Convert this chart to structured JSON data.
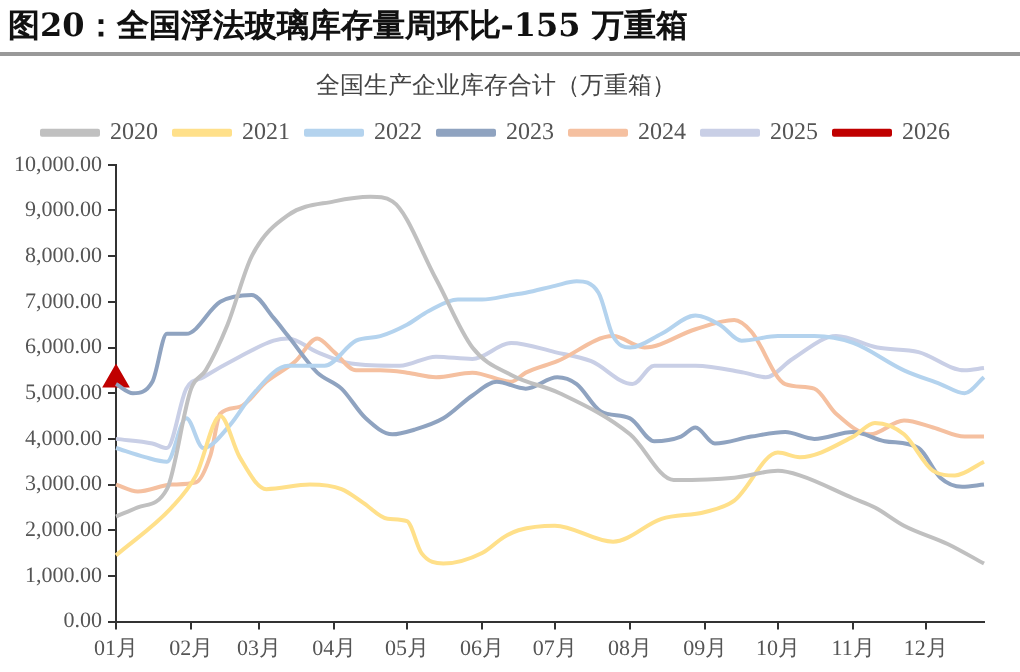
{
  "chart_data": {
    "type": "line",
    "title": "图20：全国浮法玻璃库存量周环比-155 万重箱",
    "subtitle": "全国生产企业库存合计（万重箱）",
    "legend": "top",
    "grid": false,
    "marker": "none",
    "line_style": "solid",
    "xlim": [
      "--01-01",
      "--12-25"
    ],
    "xticks": [
      {
        "value": "--01-01",
        "label": "01月"
      },
      {
        "value": "--02-01",
        "label": "02月"
      },
      {
        "value": "--03-01",
        "label": "03月"
      },
      {
        "value": "--04-01",
        "label": "04月"
      },
      {
        "value": "--05-01",
        "label": "05月"
      },
      {
        "value": "--06-01",
        "label": "06月"
      },
      {
        "value": "--07-01",
        "label": "07月"
      },
      {
        "value": "--08-01",
        "label": "08月"
      },
      {
        "value": "--09-01",
        "label": "09月"
      },
      {
        "value": "--10-01",
        "label": "10月"
      },
      {
        "value": "--11-01",
        "label": "11月"
      },
      {
        "value": "--12-01",
        "label": "12月"
      }
    ],
    "ylim": [
      0,
      10000
    ],
    "yticks": [
      {
        "value": 0,
        "label": "0.00"
      },
      {
        "value": 1000,
        "label": "1,000.00"
      },
      {
        "value": 2000,
        "label": "2,000.00"
      },
      {
        "value": 3000,
        "label": "3,000.00"
      },
      {
        "value": 4000,
        "label": "4,000.00"
      },
      {
        "value": 5000,
        "label": "5,000.00"
      },
      {
        "value": 6000,
        "label": "6,000.00"
      },
      {
        "value": 7000,
        "label": "7,000.00"
      },
      {
        "value": 8000,
        "label": "8,000.00"
      },
      {
        "value": 9000,
        "label": "9,000.00"
      },
      {
        "value": 10000,
        "label": "10,000.00"
      }
    ],
    "series": [
      {
        "name": "2020",
        "color": "#c0c0c0",
        "x": [
          "--01-01",
          "--01-10",
          "--01-22",
          "--02-01",
          "--02-07",
          "--02-16",
          "--02-26",
          "--03-13",
          "--04-01",
          "--04-16",
          "--04-25",
          "--05-13",
          "--05-28",
          "--06-13",
          "--07-03",
          "--08-01",
          "--08-19",
          "--09-13",
          "--10-01",
          "--10-10",
          "--11-01",
          "--11-10",
          "--11-22",
          "--12-10",
          "--12-25"
        ],
        "values": [
          2300,
          2500,
          2900,
          5100,
          5500,
          6500,
          8000,
          8900,
          9200,
          9300,
          9200,
          7500,
          6000,
          5400,
          5000,
          4100,
          3100,
          3150,
          3300,
          3200,
          2700,
          2500,
          2100,
          1700,
          1270
        ]
      },
      {
        "name": "2021",
        "color": "#ffe08a",
        "x": [
          "--01-01",
          "--01-24",
          "--02-03",
          "--02-13",
          "--02-21",
          "--03-04",
          "--03-22",
          "--04-04",
          "--04-13",
          "--04-23",
          "--05-01",
          "--05-07",
          "--05-16",
          "--06-01",
          "--06-10",
          "--06-16",
          "--07-01",
          "--07-25",
          "--08-14",
          "--09-01",
          "--09-13",
          "--10-01",
          "--10-10",
          "--11-01",
          "--11-10",
          "--11-22",
          "--12-04",
          "--12-13",
          "--12-25"
        ],
        "values": [
          1450,
          2500,
          3200,
          4500,
          3600,
          2900,
          3000,
          2900,
          2600,
          2250,
          2200,
          1500,
          1270,
          1500,
          1850,
          2000,
          2100,
          1750,
          2250,
          2400,
          2650,
          3700,
          3600,
          4050,
          4350,
          4100,
          3300,
          3200,
          3500
        ]
      },
      {
        "name": "2022",
        "color": "#b4d3ee",
        "x": [
          "--01-01",
          "--01-13",
          "--01-22",
          "--01-30",
          "--02-06",
          "--02-17",
          "--02-26",
          "--03-13",
          "--03-28",
          "--04-10",
          "--04-20",
          "--05-01",
          "--05-10",
          "--05-22",
          "--06-01",
          "--06-13",
          "--06-19",
          "--07-01",
          "--07-10",
          "--07-19",
          "--07-25",
          "--08-01",
          "--08-14",
          "--08-28",
          "--09-07",
          "--09-16",
          "--10-01",
          "--10-16",
          "--11-01",
          "--11-22",
          "--12-07",
          "--12-17",
          "--12-25"
        ],
        "values": [
          3800,
          3600,
          3500,
          4450,
          3800,
          4300,
          4950,
          5600,
          5600,
          6150,
          6250,
          6500,
          6800,
          7050,
          7050,
          7150,
          7200,
          7350,
          7450,
          7200,
          6250,
          6000,
          6300,
          6700,
          6500,
          6150,
          6250,
          6250,
          6100,
          5500,
          5200,
          5000,
          5350
        ]
      },
      {
        "name": "2023",
        "color": "#8fa3c0",
        "x": [
          "--01-01",
          "--01-08",
          "--01-16",
          "--01-22",
          "--01-30",
          "--02-13",
          "--02-26",
          "--03-07",
          "--03-13",
          "--03-25",
          "--04-04",
          "--04-14",
          "--04-25",
          "--05-04",
          "--05-16",
          "--05-28",
          "--06-07",
          "--06-19",
          "--07-02",
          "--07-10",
          "--07-20",
          "--08-01",
          "--08-11",
          "--08-22",
          "--08-28",
          "--09-05",
          "--09-20",
          "--10-04",
          "--10-16",
          "--11-01",
          "--11-14",
          "--11-28",
          "--12-07",
          "--12-16",
          "--12-25"
        ],
        "values": [
          5200,
          5000,
          5250,
          6300,
          6300,
          7000,
          7150,
          6650,
          6250,
          5450,
          5100,
          4450,
          4100,
          4200,
          4450,
          4950,
          5250,
          5100,
          5350,
          5200,
          4600,
          4450,
          3950,
          4050,
          4250,
          3900,
          4050,
          4150,
          4000,
          4150,
          3950,
          3800,
          3150,
          2950,
          3000
        ]
      },
      {
        "name": "2024",
        "color": "#f5c0a0",
        "x": [
          "--01-01",
          "--01-10",
          "--01-24",
          "--02-03",
          "--02-09",
          "--02-13",
          "--02-21",
          "--03-04",
          "--03-16",
          "--03-25",
          "--04-01",
          "--04-10",
          "--04-20",
          "--05-01",
          "--05-13",
          "--05-28",
          "--06-13",
          "--06-19",
          "--07-02",
          "--07-25",
          "--08-07",
          "--08-28",
          "--09-13",
          "--09-20",
          "--10-04",
          "--10-16",
          "--10-25",
          "--11-08",
          "--11-22",
          "--12-04",
          "--12-17",
          "--12-25"
        ],
        "values": [
          3000,
          2850,
          3000,
          3050,
          3650,
          4550,
          4700,
          5250,
          5700,
          6200,
          5900,
          5500,
          5500,
          5450,
          5350,
          5450,
          5250,
          5450,
          5700,
          6250,
          6000,
          6400,
          6600,
          6350,
          5200,
          5100,
          4550,
          4100,
          4400,
          4250,
          4050,
          4050
        ]
      },
      {
        "name": "2025",
        "color": "#c9cfe6",
        "x": [
          "--01-01",
          "--01-16",
          "--01-22",
          "--01-30",
          "--02-06",
          "--02-21",
          "--03-07",
          "--03-13",
          "--03-25",
          "--04-08",
          "--04-28",
          "--05-13",
          "--05-28",
          "--06-13",
          "--07-01",
          "--07-16",
          "--08-02",
          "--08-11",
          "--08-28",
          "--09-17",
          "--09-26",
          "--10-07",
          "--10-25",
          "--11-11",
          "--11-28",
          "--12-17",
          "--12-25"
        ],
        "values": [
          4000,
          3900,
          3800,
          5100,
          5350,
          5800,
          6150,
          6200,
          5900,
          5650,
          5600,
          5800,
          5750,
          6100,
          5900,
          5700,
          5200,
          5600,
          5600,
          5450,
          5350,
          5750,
          6250,
          6000,
          5900,
          5500,
          5550
        ]
      },
      {
        "name": "2026",
        "color": "#c00000",
        "marker": "triangle",
        "x": [
          "--01-01"
        ],
        "values": [
          5300
        ]
      }
    ]
  }
}
